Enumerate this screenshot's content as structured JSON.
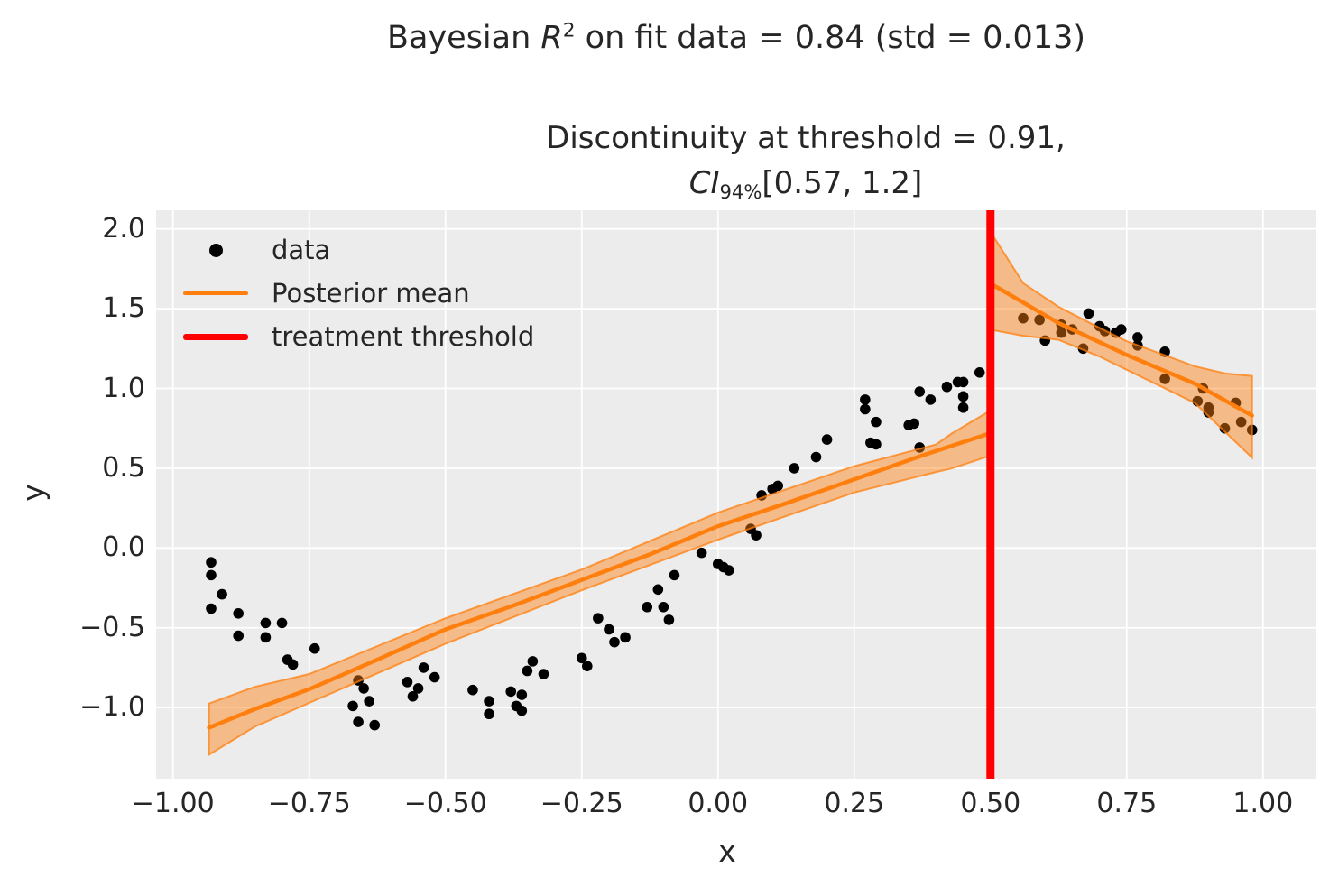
{
  "title": {
    "full": "Bayesian R^2 on fit data = 0.84 (std = 0.013)",
    "prefix": "Bayesian ",
    "r_symbol": "R",
    "r_exponent": "2",
    "suffix": " on fit data = 0.84 (std = 0.013)"
  },
  "subtitle": {
    "full": "Discontinuity at threshold = 0.91, CI_94% [0.57, 1.2]",
    "line1": "Discontinuity at threshold = 0.91,",
    "ci_symbol": "CI",
    "ci_subscript": "94%",
    "ci_interval": "[0.57, 1.2]"
  },
  "legend": {
    "items": [
      {
        "label": "data",
        "marker": "black-dot"
      },
      {
        "label": "Posterior mean",
        "marker": "orange-line"
      },
      {
        "label": "treatment threshold",
        "marker": "red-thick-line"
      }
    ]
  },
  "axes": {
    "xlabel": "x",
    "ylabel": "y",
    "x_tick_labels": [
      "−1.00",
      "−0.75",
      "−0.50",
      "−0.25",
      "0.00",
      "0.25",
      "0.50",
      "0.75",
      "1.00"
    ],
    "y_tick_labels": [
      "−1.0",
      "−0.5",
      "0.0",
      "0.5",
      "1.0",
      "1.5",
      "2.0"
    ]
  },
  "colors": {
    "background": "#ffffff",
    "plot_background": "#ececec",
    "grid": "#ffffff",
    "text": "#262626",
    "scatter": "#000000",
    "posterior_mean": "#ff7f0e",
    "hdi_band_fill": "rgba(255,127,14,0.45)",
    "hdi_band_edge": "rgba(255,127,14,0.75)",
    "threshold": "#ff0000"
  },
  "chart_data": {
    "type": "scatter",
    "title": "Bayesian R^2 on fit data = 0.84 (std = 0.013)",
    "subtitle": "Discontinuity at threshold = 0.91, CI_94% [0.57, 1.2]",
    "xlabel": "x",
    "ylabel": "y",
    "xlim": [
      -1.031,
      1.098
    ],
    "ylim": [
      -1.446,
      2.117
    ],
    "x_tick_values": [
      -1.0,
      -0.75,
      -0.5,
      -0.25,
      0.0,
      0.25,
      0.5,
      0.75,
      1.0
    ],
    "y_tick_values": [
      -1.0,
      -0.5,
      0.0,
      0.5,
      1.0,
      1.5,
      2.0
    ],
    "grid": true,
    "legend_position": "upper-left",
    "threshold_x": 0.5,
    "series": [
      {
        "name": "data",
        "type": "scatter",
        "color": "#000000",
        "points": [
          [
            -0.93,
            -0.09
          ],
          [
            -0.93,
            -0.17
          ],
          [
            -0.91,
            -0.29
          ],
          [
            -0.93,
            -0.38
          ],
          [
            -0.88,
            -0.41
          ],
          [
            -0.88,
            -0.55
          ],
          [
            -0.83,
            -0.47
          ],
          [
            -0.8,
            -0.47
          ],
          [
            -0.83,
            -0.56
          ],
          [
            -0.74,
            -0.63
          ],
          [
            -0.79,
            -0.7
          ],
          [
            -0.78,
            -0.73
          ],
          [
            -0.66,
            -0.83
          ],
          [
            -0.65,
            -0.88
          ],
          [
            -0.67,
            -0.99
          ],
          [
            -0.64,
            -0.96
          ],
          [
            -0.66,
            -1.09
          ],
          [
            -0.63,
            -1.11
          ],
          [
            -0.57,
            -0.84
          ],
          [
            -0.55,
            -0.88
          ],
          [
            -0.54,
            -0.75
          ],
          [
            -0.52,
            -0.81
          ],
          [
            -0.56,
            -0.93
          ],
          [
            -0.45,
            -0.89
          ],
          [
            -0.42,
            -0.96
          ],
          [
            -0.42,
            -1.04
          ],
          [
            -0.38,
            -0.9
          ],
          [
            -0.36,
            -0.92
          ],
          [
            -0.37,
            -0.99
          ],
          [
            -0.36,
            -1.02
          ],
          [
            -0.34,
            -0.71
          ],
          [
            -0.35,
            -0.77
          ],
          [
            -0.32,
            -0.79
          ],
          [
            -0.25,
            -0.69
          ],
          [
            -0.24,
            -0.74
          ],
          [
            -0.22,
            -0.44
          ],
          [
            -0.2,
            -0.51
          ],
          [
            -0.19,
            -0.59
          ],
          [
            -0.17,
            -0.56
          ],
          [
            -0.13,
            -0.37
          ],
          [
            -0.11,
            -0.26
          ],
          [
            -0.1,
            -0.37
          ],
          [
            -0.09,
            -0.45
          ],
          [
            -0.08,
            -0.17
          ],
          [
            -0.03,
            -0.03
          ],
          [
            0.0,
            -0.1
          ],
          [
            0.01,
            -0.12
          ],
          [
            0.02,
            -0.14
          ],
          [
            0.06,
            0.12
          ],
          [
            0.07,
            0.08
          ],
          [
            0.08,
            0.33
          ],
          [
            0.1,
            0.37
          ],
          [
            0.11,
            0.39
          ],
          [
            0.14,
            0.5
          ],
          [
            0.18,
            0.57
          ],
          [
            0.2,
            0.68
          ],
          [
            0.27,
            0.93
          ],
          [
            0.27,
            0.87
          ],
          [
            0.29,
            0.79
          ],
          [
            0.28,
            0.66
          ],
          [
            0.29,
            0.65
          ],
          [
            0.35,
            0.77
          ],
          [
            0.36,
            0.78
          ],
          [
            0.37,
            0.98
          ],
          [
            0.39,
            0.93
          ],
          [
            0.37,
            0.63
          ],
          [
            0.42,
            1.01
          ],
          [
            0.44,
            1.04
          ],
          [
            0.45,
            1.04
          ],
          [
            0.45,
            0.95
          ],
          [
            0.45,
            0.88
          ],
          [
            0.48,
            1.1
          ],
          [
            0.56,
            1.44
          ],
          [
            0.59,
            1.43
          ],
          [
            0.6,
            1.3
          ],
          [
            0.63,
            1.4
          ],
          [
            0.63,
            1.35
          ],
          [
            0.65,
            1.37
          ],
          [
            0.67,
            1.25
          ],
          [
            0.68,
            1.47
          ],
          [
            0.7,
            1.39
          ],
          [
            0.71,
            1.36
          ],
          [
            0.73,
            1.35
          ],
          [
            0.74,
            1.37
          ],
          [
            0.77,
            1.32
          ],
          [
            0.77,
            1.27
          ],
          [
            0.82,
            1.23
          ],
          [
            0.82,
            1.06
          ],
          [
            0.89,
            1.0
          ],
          [
            0.88,
            0.92
          ],
          [
            0.9,
            0.88
          ],
          [
            0.9,
            0.85
          ],
          [
            0.95,
            0.91
          ],
          [
            0.93,
            0.75
          ],
          [
            0.96,
            0.79
          ],
          [
            0.98,
            0.74
          ]
        ]
      },
      {
        "name": "Posterior mean (left of threshold)",
        "type": "line",
        "color": "#ff7f0e",
        "points": [
          [
            -0.934,
            -1.126
          ],
          [
            -0.85,
            -1.01
          ],
          [
            -0.75,
            -0.885
          ],
          [
            -0.625,
            -0.7
          ],
          [
            -0.5,
            -0.51
          ],
          [
            -0.375,
            -0.36
          ],
          [
            -0.25,
            -0.2
          ],
          [
            -0.125,
            -0.04
          ],
          [
            0.0,
            0.137
          ],
          [
            0.125,
            0.28
          ],
          [
            0.25,
            0.43
          ],
          [
            0.375,
            0.58
          ],
          [
            0.5,
            0.72
          ]
        ]
      },
      {
        "name": "94% HDI (left of threshold)",
        "type": "band",
        "top": [
          [
            -0.934,
            -0.975
          ],
          [
            -0.85,
            -0.87
          ],
          [
            -0.75,
            -0.79
          ],
          [
            -0.5,
            -0.44
          ],
          [
            -0.25,
            -0.135
          ],
          [
            0.0,
            0.222
          ],
          [
            0.25,
            0.513
          ],
          [
            0.4,
            0.649
          ],
          [
            0.43,
            0.72
          ],
          [
            0.5,
            0.862
          ]
        ],
        "bottom": [
          [
            -0.934,
            -1.296
          ],
          [
            -0.85,
            -1.12
          ],
          [
            -0.75,
            -0.971
          ],
          [
            -0.5,
            -0.6
          ],
          [
            -0.25,
            -0.265
          ],
          [
            0.0,
            0.052
          ],
          [
            0.25,
            0.348
          ],
          [
            0.4,
            0.476
          ],
          [
            0.43,
            0.5
          ],
          [
            0.5,
            0.579
          ]
        ]
      },
      {
        "name": "Posterior mean (right of threshold)",
        "type": "line",
        "color": "#ff7f0e",
        "points": [
          [
            0.505,
            1.648
          ],
          [
            0.625,
            1.41
          ],
          [
            0.75,
            1.21
          ],
          [
            0.875,
            1.03
          ],
          [
            0.98,
            0.83
          ]
        ]
      },
      {
        "name": "94% HDI (right of threshold)",
        "type": "band",
        "top": [
          [
            0.505,
            1.955
          ],
          [
            0.56,
            1.66
          ],
          [
            0.625,
            1.512
          ],
          [
            0.7,
            1.38
          ],
          [
            0.75,
            1.296
          ],
          [
            0.875,
            1.139
          ],
          [
            0.93,
            1.095
          ],
          [
            0.98,
            1.078
          ]
        ],
        "bottom": [
          [
            0.505,
            1.365
          ],
          [
            0.56,
            1.33
          ],
          [
            0.625,
            1.305
          ],
          [
            0.7,
            1.2
          ],
          [
            0.75,
            1.117
          ],
          [
            0.875,
            0.909
          ],
          [
            0.98,
            0.566
          ]
        ]
      },
      {
        "name": "treatment threshold",
        "type": "vline",
        "x": 0.5,
        "color": "#ff0000"
      }
    ]
  }
}
